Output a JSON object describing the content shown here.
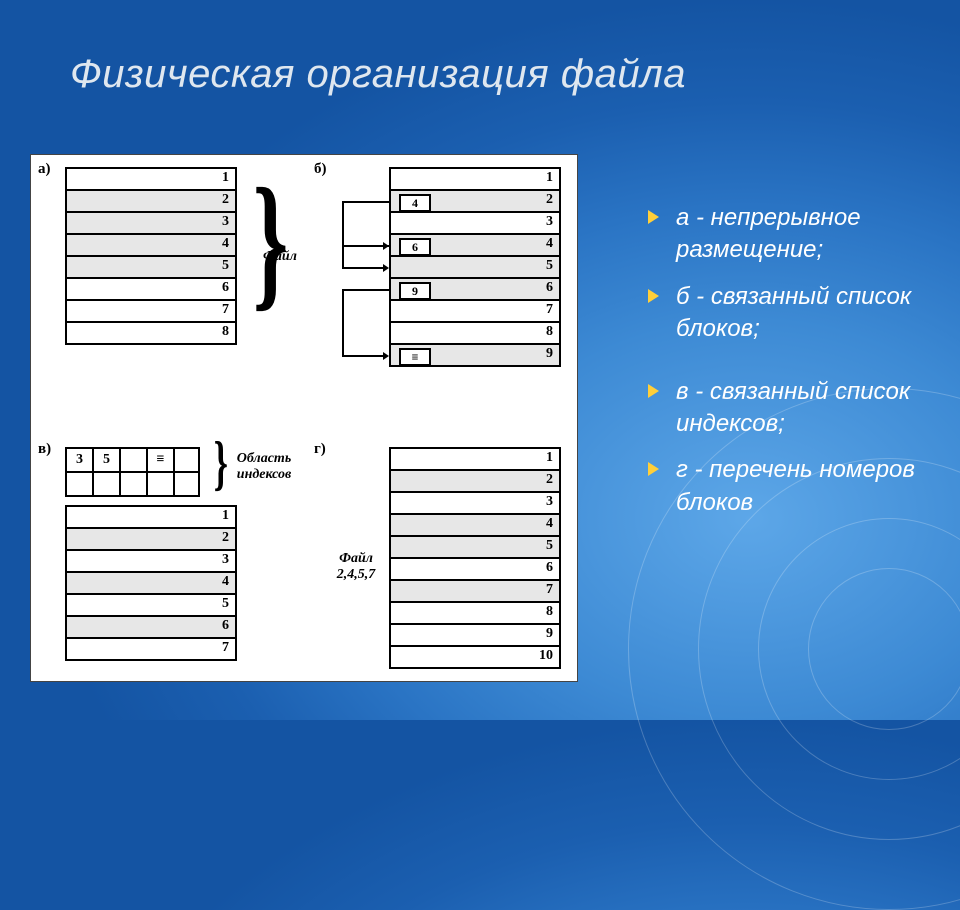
{
  "title": "Физическая организация файла",
  "bullets": [
    "а - непрерывное размещение;",
    "б - связанный список блоков;",
    "в - связанный список индексов;",
    "г - перечень номеров блоков"
  ],
  "labels": {
    "a": "а)",
    "b": "б)",
    "v": "в)",
    "g": "г)",
    "file": "Файл",
    "idx_area": "Область индексов",
    "file_set": "Файл 2,4,5,7"
  },
  "panel_a": {
    "rows": [
      1,
      2,
      3,
      4,
      5,
      6,
      7,
      8
    ],
    "shaded": [
      2,
      3,
      4,
      5
    ]
  },
  "panel_b": {
    "rows": [
      1,
      2,
      3,
      4,
      5,
      6,
      7,
      8,
      9
    ],
    "shaded": [
      2,
      4,
      5,
      6,
      9
    ],
    "ptrs": {
      "2": "4",
      "4": "6",
      "6": "9",
      "9": "≡"
    }
  },
  "panel_v": {
    "idx_row1": [
      "3",
      "5",
      "",
      "≡"
    ],
    "idx_cols": 5,
    "rows": [
      1,
      2,
      3,
      4,
      5,
      6,
      7
    ],
    "shaded": [
      2,
      4,
      6
    ]
  },
  "panel_g": {
    "rows": [
      1,
      2,
      3,
      4,
      5,
      6,
      7,
      8,
      9,
      10
    ],
    "shaded": [
      2,
      4,
      5,
      7
    ]
  },
  "colors": {
    "bg": "#2a74c4",
    "accent": "#ffcf3a",
    "text": "#ffffff",
    "title": "#dfe7ef",
    "diagram_bg": "#ffffff",
    "shade": "#e7e7e7",
    "line": "#000000"
  }
}
